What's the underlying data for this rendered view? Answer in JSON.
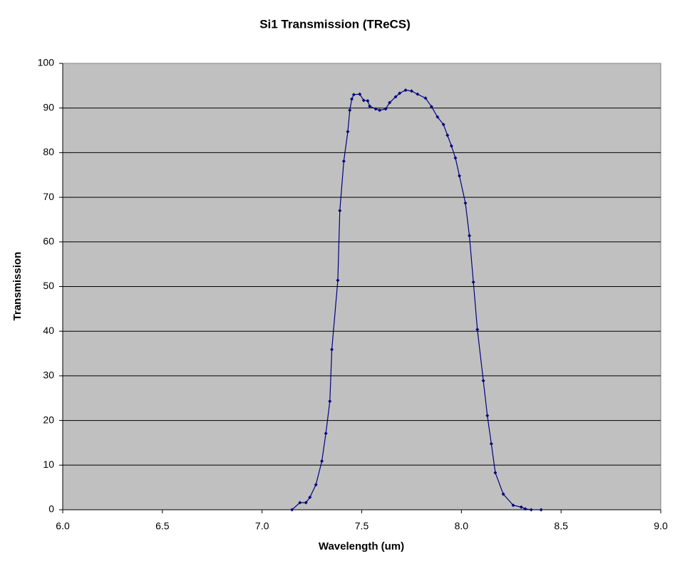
{
  "chart_data": {
    "type": "line",
    "title": "Si1 Transmission (TReCS)",
    "x_label": "Wavelength (um)",
    "y_label": "Transmission",
    "x": [
      7.15,
      7.19,
      7.22,
      7.24,
      7.27,
      7.3,
      7.32,
      7.34,
      7.35,
      7.38,
      7.39,
      7.41,
      7.43,
      7.44,
      7.45,
      7.46,
      7.49,
      7.51,
      7.53,
      7.54,
      7.57,
      7.59,
      7.62,
      7.64,
      7.67,
      7.69,
      7.72,
      7.75,
      7.78,
      7.82,
      7.85,
      7.88,
      7.91,
      7.93,
      7.95,
      7.97,
      7.99,
      8.02,
      8.04,
      8.06,
      8.08,
      8.11,
      8.13,
      8.15,
      8.17,
      8.21,
      8.26,
      8.3,
      8.32,
      8.35,
      8.4
    ],
    "series": [
      {
        "name": "Transmission",
        "color": "#000080",
        "values": [
          0,
          1.6,
          1.6,
          2.8,
          5.6,
          10.9,
          17.1,
          24.3,
          35.9,
          51.4,
          67.0,
          78.1,
          84.7,
          89.5,
          92.0,
          93.0,
          93.1,
          91.7,
          91.6,
          90.4,
          89.8,
          89.5,
          89.8,
          91.2,
          92.5,
          93.3,
          94.0,
          93.8,
          93.1,
          92.2,
          90.3,
          88.0,
          86.3,
          83.9,
          81.5,
          78.8,
          74.8,
          68.7,
          61.4,
          51.0,
          40.4,
          28.9,
          21.1,
          14.8,
          8.3,
          3.5,
          1.0,
          0.6,
          0.2,
          0,
          0
        ]
      }
    ],
    "xlim": [
      6.0,
      9.0
    ],
    "xticks": [
      {
        "value": 6,
        "label": "6.0"
      },
      {
        "value": 6.5,
        "label": "6.5"
      },
      {
        "value": 7,
        "label": "7.0"
      },
      {
        "value": 7.5,
        "label": "7.5"
      },
      {
        "value": 8,
        "label": "8.0"
      },
      {
        "value": 8.5,
        "label": "8.5"
      },
      {
        "value": 9,
        "label": "9.0"
      }
    ],
    "ylim": [
      0,
      100
    ],
    "yticks": [
      0,
      10,
      20,
      30,
      40,
      50,
      60,
      70,
      80,
      90,
      100
    ],
    "grid": true,
    "plot_background": "#c0c0c0"
  }
}
